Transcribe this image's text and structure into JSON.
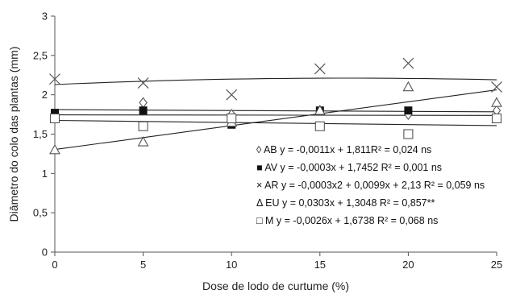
{
  "chart_data": {
    "type": "scatter",
    "xlabel": "Dose de lodo de curtume (%)",
    "ylabel": "Diâmetro do colo das plantas (mm)",
    "xlim": [
      0,
      25
    ],
    "ylim": [
      0,
      3
    ],
    "x_ticks": [
      "0",
      "5",
      "10",
      "15",
      "20",
      "25"
    ],
    "y_ticks": [
      "0",
      "0,5",
      "1",
      "1,5",
      "2",
      "2,5",
      "3"
    ],
    "x": [
      0,
      5,
      10,
      15,
      20,
      25
    ],
    "grid": false,
    "legend_position": "bottom-right",
    "series": [
      {
        "key": "AB",
        "marker": "diamond-open",
        "values": [
          1.75,
          1.9,
          1.75,
          1.8,
          1.75,
          1.8
        ],
        "trend": {
          "kind": "linear",
          "a": -0.0011,
          "b": 1.811
        },
        "legend_label": "◊ AB y = -0,0011x + 1,811R² = 0,024 ns"
      },
      {
        "key": "AV",
        "marker": "square-filled",
        "values": [
          1.77,
          1.8,
          1.62,
          1.8,
          1.8,
          1.7
        ],
        "trend": {
          "kind": "linear",
          "a": -0.0003,
          "b": 1.7452
        },
        "legend_label": "■ AV y = -0,0003x + 1,7452 R² = 0,001 ns"
      },
      {
        "key": "AR",
        "marker": "x",
        "values": [
          2.2,
          2.15,
          2.0,
          2.33,
          2.4,
          2.1
        ],
        "trend": {
          "kind": "quadratic",
          "a2": -0.0003,
          "a1": 0.0099,
          "b": 2.13
        },
        "legend_label": "× AR y = -0,0003x2 + 0,0099x + 2,13 R² = 0,059 ns"
      },
      {
        "key": "EU",
        "marker": "triangle-open",
        "values": [
          1.3,
          1.4,
          1.65,
          1.8,
          2.1,
          1.9
        ],
        "trend": {
          "kind": "linear",
          "a": 0.0303,
          "b": 1.3048
        },
        "legend_label": "Δ EU y = 0,0303x + 1,3048 R² = 0,857**"
      },
      {
        "key": "M",
        "marker": "square-open",
        "values": [
          1.7,
          1.6,
          1.7,
          1.6,
          1.5,
          1.7
        ],
        "trend": {
          "kind": "linear",
          "a": -0.0026,
          "b": 1.6738
        },
        "legend_label": "□ M y = -0,0026x + 1,6738 R² = 0,068 ns"
      }
    ]
  }
}
